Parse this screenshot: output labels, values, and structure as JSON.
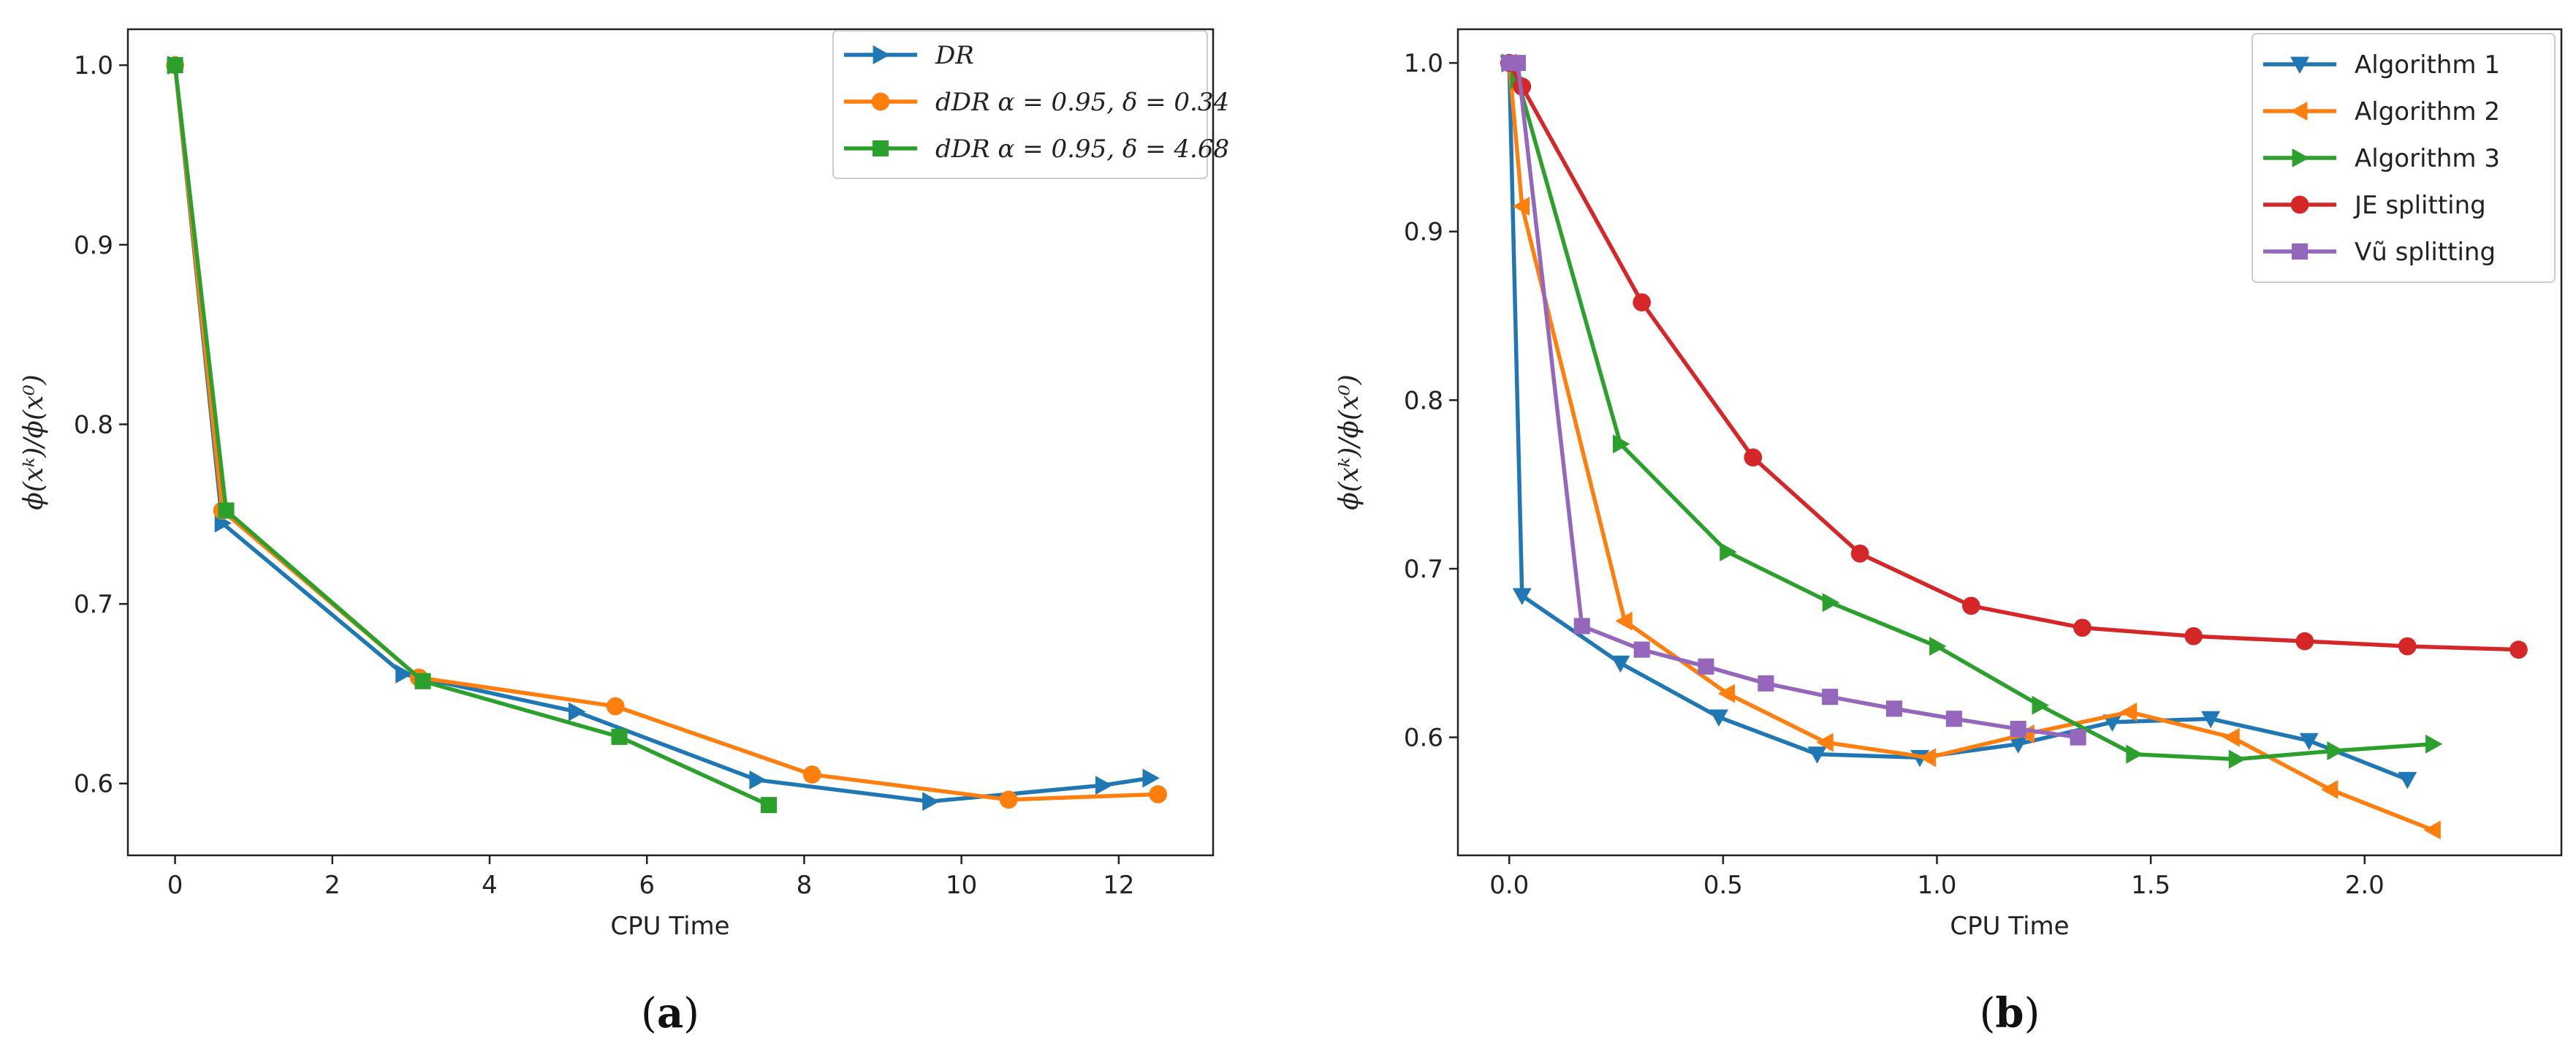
{
  "chart_data": [
    {
      "type": "line",
      "panel": "(a)",
      "caption_letter": "a",
      "xlabel": "CPU Time",
      "ylabel": "ϕ(xᵏ)/ϕ(x⁰)",
      "xlim": [
        -0.6,
        13.2
      ],
      "ylim": [
        0.56,
        1.02
      ],
      "xticks": [
        0,
        2,
        4,
        6,
        8,
        10,
        12
      ],
      "yticks": [
        0.6,
        0.7,
        0.8,
        0.9,
        1.0
      ],
      "xtick_labels": [
        "0",
        "2",
        "4",
        "6",
        "8",
        "10",
        "12"
      ],
      "ytick_labels": [
        "0.6",
        "0.7",
        "0.8",
        "0.9",
        "1.0"
      ],
      "legend_position": "top-right",
      "series": [
        {
          "name": "DR",
          "legend_main": "DR",
          "legend_rest": "",
          "color": "#1f77b4",
          "marker": "triangle-right",
          "x": [
            0.0,
            0.6,
            2.9,
            5.1,
            7.4,
            9.6,
            11.8,
            12.4
          ],
          "y": [
            1.0,
            0.745,
            0.661,
            0.64,
            0.602,
            0.59,
            0.599,
            0.603
          ]
        },
        {
          "name": "dDR α = 0.95, δ = 0.34",
          "legend_main": "dDR",
          "legend_rest": " α = 0.95, δ = 0.34",
          "color": "#ff7f0e",
          "marker": "circle",
          "x": [
            0.0,
            0.6,
            3.1,
            5.6,
            8.1,
            10.6,
            12.5
          ],
          "y": [
            1.0,
            0.752,
            0.659,
            0.643,
            0.605,
            0.591,
            0.594
          ]
        },
        {
          "name": "dDR α = 0.95, δ = 4.68",
          "legend_main": "dDR",
          "legend_rest": " α = 0.95, δ = 4.68",
          "color": "#2ca02c",
          "marker": "square",
          "x": [
            0.0,
            0.65,
            3.15,
            5.65,
            7.55
          ],
          "y": [
            1.0,
            0.752,
            0.657,
            0.626,
            0.588
          ]
        }
      ]
    },
    {
      "type": "line",
      "panel": "(b)",
      "caption_letter": "b",
      "xlabel": "CPU Time",
      "ylabel": "ϕ(xᵏ)/ϕ(x⁰)",
      "xlim": [
        -0.12,
        2.46
      ],
      "ylim": [
        0.53,
        1.02
      ],
      "xticks": [
        0.0,
        0.5,
        1.0,
        1.5,
        2.0
      ],
      "yticks": [
        0.6,
        0.7,
        0.8,
        0.9,
        1.0
      ],
      "xtick_labels": [
        "0.0",
        "0.5",
        "1.0",
        "1.5",
        "2.0"
      ],
      "ytick_labels": [
        "0.6",
        "0.7",
        "0.8",
        "0.9",
        "1.0"
      ],
      "legend_position": "top-right",
      "series": [
        {
          "name": "Algorithm 1",
          "color": "#1f77b4",
          "marker": "triangle-down",
          "x": [
            0.0,
            0.03,
            0.26,
            0.49,
            0.72,
            0.96,
            1.19,
            1.41,
            1.64,
            1.87,
            2.1
          ],
          "y": [
            1.0,
            0.684,
            0.644,
            0.612,
            0.59,
            0.588,
            0.596,
            0.609,
            0.611,
            0.598,
            0.575
          ]
        },
        {
          "name": "Algorithm 2",
          "color": "#ff7f0e",
          "marker": "triangle-left",
          "x": [
            0.0,
            0.03,
            0.27,
            0.51,
            0.74,
            0.98,
            1.21,
            1.45,
            1.69,
            1.92,
            2.16
          ],
          "y": [
            1.0,
            0.915,
            0.669,
            0.626,
            0.597,
            0.588,
            0.602,
            0.615,
            0.6,
            0.569,
            0.545
          ]
        },
        {
          "name": "Algorithm 3",
          "color": "#2ca02c",
          "marker": "triangle-right",
          "x": [
            0.0,
            0.02,
            0.26,
            0.51,
            0.75,
            1.0,
            1.24,
            1.46,
            1.7,
            1.93,
            2.16
          ],
          "y": [
            1.0,
            0.99,
            0.774,
            0.71,
            0.68,
            0.654,
            0.619,
            0.59,
            0.587,
            0.592,
            0.596
          ]
        },
        {
          "name": "JE splitting",
          "color": "#d62728",
          "marker": "circle",
          "x": [
            0.0,
            0.03,
            0.31,
            0.57,
            0.82,
            1.08,
            1.34,
            1.6,
            1.86,
            2.1,
            2.36
          ],
          "y": [
            1.0,
            0.986,
            0.858,
            0.766,
            0.709,
            0.678,
            0.665,
            0.66,
            0.657,
            0.654,
            0.652
          ]
        },
        {
          "name": "Vũ splitting",
          "color": "#9467bd",
          "marker": "square",
          "x": [
            0.0,
            0.02,
            0.17,
            0.31,
            0.46,
            0.6,
            0.75,
            0.9,
            1.04,
            1.19,
            1.33
          ],
          "y": [
            1.0,
            1.0,
            0.666,
            0.652,
            0.642,
            0.632,
            0.624,
            0.617,
            0.611,
            0.605,
            0.6
          ]
        }
      ]
    }
  ]
}
